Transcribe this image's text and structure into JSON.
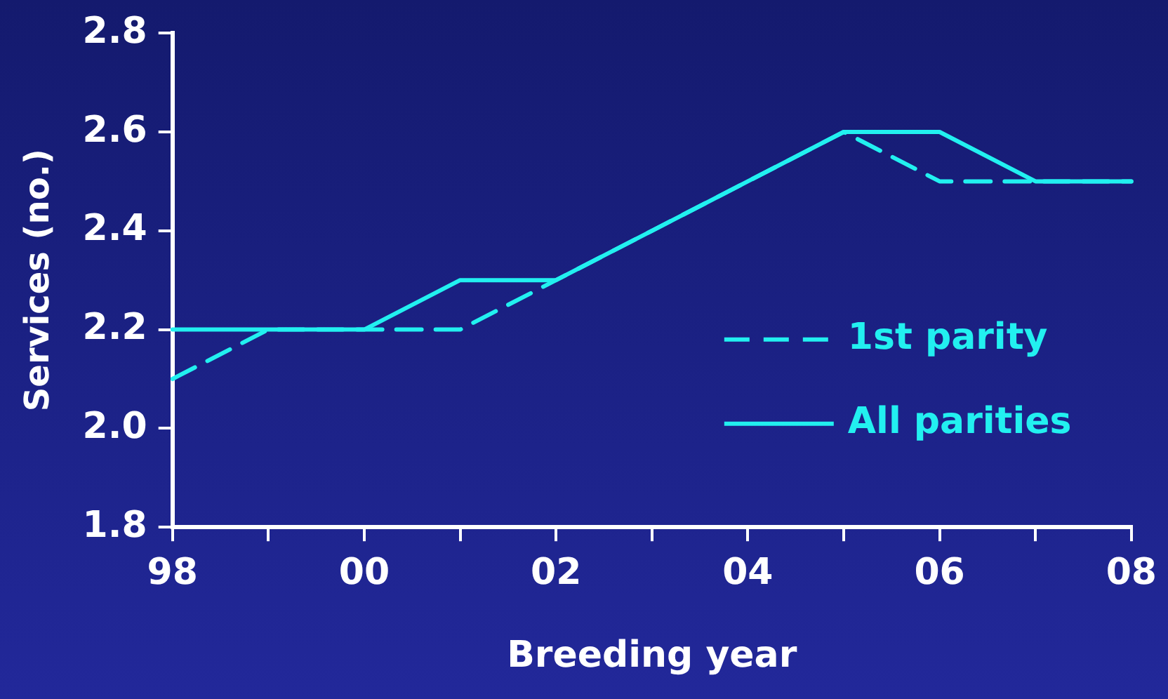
{
  "chart_data": {
    "type": "line",
    "xlabel": "Breeding year",
    "ylabel": "Services (no.)",
    "categories": [
      "98",
      null,
      "00",
      null,
      "02",
      null,
      "04",
      null,
      "06",
      null,
      "08"
    ],
    "series": [
      {
        "name": "1st parity",
        "color": "#22f0f0",
        "line_style": "dashed",
        "values": [
          2.1,
          2.2,
          2.2,
          2.2,
          2.3,
          2.4,
          2.5,
          2.6,
          2.5,
          2.5,
          2.5
        ]
      },
      {
        "name": "All parities",
        "color": "#22f0f0",
        "line_style": "solid",
        "values": [
          2.2,
          2.2,
          2.2,
          2.3,
          2.3,
          2.4,
          2.5,
          2.6,
          2.6,
          2.5,
          2.5
        ]
      }
    ],
    "ylim": [
      1.8,
      2.8
    ],
    "yticks": [
      {
        "value": 1.8,
        "label": "1.8"
      },
      {
        "value": 2.0,
        "label": "2.0"
      },
      {
        "value": 2.2,
        "label": "2.2"
      },
      {
        "value": 2.4,
        "label": "2.4"
      },
      {
        "value": 2.6,
        "label": "2.6"
      },
      {
        "value": 2.8,
        "label": "2.8"
      }
    ],
    "grid": false,
    "legend": "right",
    "marker": "none"
  }
}
